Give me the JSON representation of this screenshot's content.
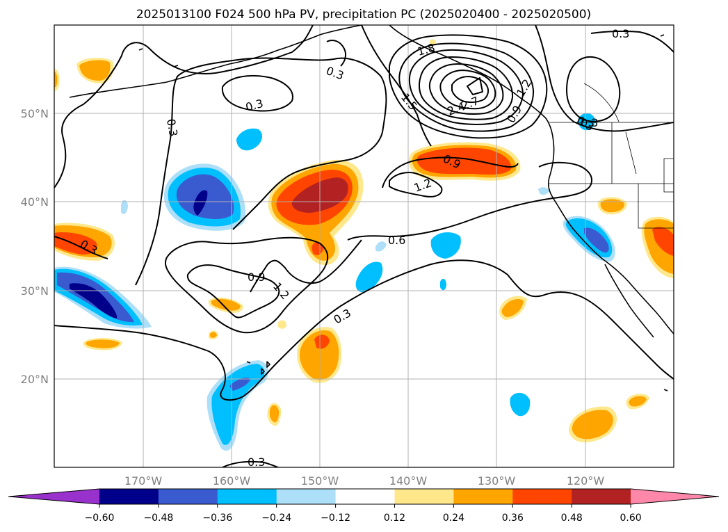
{
  "title": "2025013100 F024 500 hPa PV, precipitation PC (2025020400 - 2025020500)",
  "longitude_ticks": [
    "170°W",
    "160°W",
    "150°W",
    "140°W",
    "130°W",
    "120°W"
  ],
  "latitude_ticks": [
    "50°N",
    "40°N",
    "30°N",
    "20°N"
  ],
  "contour_labels": [
    "0.3",
    "0.3",
    "0.3",
    "0.3",
    "0.3",
    "0.3",
    "0.3",
    "0.3",
    "0.6",
    "0.9",
    "0.9",
    "1.2",
    "1.2",
    "1.5",
    "1.8",
    "2.4",
    "2.7",
    "0.9",
    "1.2",
    "0.3"
  ],
  "colorbar": {
    "ticks": [
      "−0.60",
      "−0.48",
      "−0.36",
      "−0.24",
      "−0.12",
      "0.12",
      "0.24",
      "0.36",
      "0.48",
      "0.60"
    ],
    "colors": [
      "#9932CC",
      "#00008B",
      "#3A5BCF",
      "#00BFFF",
      "#ADDFF8",
      "#FFFFFF",
      "#FFE88C",
      "#FFA500",
      "#FF4500",
      "#B22222",
      "#FF88AA"
    ]
  },
  "chart_data": {
    "type": "heatmap",
    "title": "2025013100 F024 500 hPa PV, precipitation PC (2025020400 - 2025020500)",
    "region": {
      "lon_range": [
        -180,
        -110
      ],
      "lat_range": [
        10,
        60
      ]
    },
    "colorbar_levels": [
      -0.6,
      -0.48,
      -0.36,
      -0.24,
      -0.12,
      0.12,
      0.24,
      0.36,
      0.48,
      0.6
    ],
    "pv_contour_levels": [
      0.3,
      0.6,
      0.9,
      1.2,
      1.5,
      1.8,
      2.1,
      2.4,
      2.7
    ],
    "precip_pc_features": [
      {
        "lon": -163,
        "lat": 40,
        "value": -0.54
      },
      {
        "lon": -174,
        "lat": 29,
        "value": -0.54
      },
      {
        "lon": -160,
        "lat": 19,
        "value": -0.4
      },
      {
        "lon": -157,
        "lat": 48,
        "value": -0.3
      },
      {
        "lon": -150,
        "lat": 41,
        "value": 0.54
      },
      {
        "lon": -133,
        "lat": 44,
        "value": 0.42
      },
      {
        "lon": -120,
        "lat": 36,
        "value": -0.45
      },
      {
        "lon": -111,
        "lat": 35,
        "value": 0.42
      },
      {
        "lon": -150,
        "lat": 22,
        "value": 0.42
      },
      {
        "lon": -176,
        "lat": 35,
        "value": 0.36
      },
      {
        "lon": -135,
        "lat": 35,
        "value": -0.3
      },
      {
        "lon": -118,
        "lat": 14,
        "value": 0.3
      }
    ]
  }
}
